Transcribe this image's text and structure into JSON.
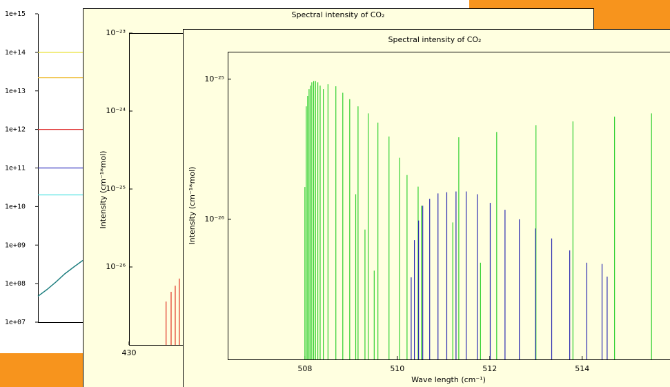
{
  "background_chart": {
    "type": "levels",
    "ylim": [
      10000000.0,
      1000000000000000.0
    ],
    "log_y": true,
    "yticks": [
      {
        "value": 1000000000000000.0,
        "label": "1e+15"
      },
      {
        "value": 100000000000000.0,
        "label": "1e+14"
      },
      {
        "value": 10000000000000.0,
        "label": "1e+13"
      },
      {
        "value": 1000000000000.0,
        "label": "1e+12"
      },
      {
        "value": 100000000000.0,
        "label": "1e+11"
      },
      {
        "value": 10000000000.0,
        "label": "1e+10"
      },
      {
        "value": 1000000000.0,
        "label": "1e+09"
      },
      {
        "value": 100000000.0,
        "label": "1e+08"
      },
      {
        "value": 10000000.0,
        "label": "1e+07"
      }
    ],
    "levels": [
      {
        "color": "#e8e030",
        "value": 100000000000000.0
      },
      {
        "color": "#f0c040",
        "value": 22000000000000.0
      },
      {
        "color": "#e03030",
        "value": 1000000000000.0
      },
      {
        "color": "#3838c0",
        "value": 100000000000.0
      },
      {
        "color": "#40e0e0",
        "value": 20000000000.0
      }
    ],
    "series": [
      {
        "color": "#1f7f80",
        "values": [
          47000000.0,
          70000000.0,
          110000000.0,
          180000000.0,
          270000000.0,
          400000000.0
        ]
      }
    ]
  },
  "windows": [
    {
      "title": "Spectral intensity of CO₂",
      "chart": {
        "type": "spectrum",
        "ylabel": "Intensity (cm⁻¹*mol)",
        "xlim": [
          430,
          530
        ],
        "xticks": [
          430
        ],
        "ylim": [
          1e-27,
          1e-23
        ],
        "log_y": true,
        "yticks": [
          {
            "value": 1e-23,
            "label": "10⁻²³"
          },
          {
            "value": 1e-24,
            "label": "10⁻²⁴"
          },
          {
            "value": 1e-25,
            "label": "10⁻²⁵"
          },
          {
            "value": 1e-26,
            "label": "10⁻²⁶"
          }
        ],
        "series": [
          {
            "color": "#e03020",
            "x": [
              438.1,
              439.2,
              440.1,
              441.0
            ],
            "values": [
              3.6e-27,
              4.8e-27,
              5.75e-27,
              7.1e-27
            ]
          }
        ]
      }
    },
    {
      "title": "Spectral intensity of CO₂",
      "chart": {
        "type": "spectrum",
        "ylabel": "Intensity (cm⁻¹*mol)",
        "xlabel": "Wave length (cm⁻¹)",
        "xlim": [
          506.33,
          515.9
        ],
        "xticks": [
          508,
          510,
          512,
          514
        ],
        "ylim": [
          1e-27,
          1.57e-25
        ],
        "log_y": true,
        "yticks": [
          {
            "value": 1e-25,
            "label": "10⁻²⁵"
          },
          {
            "value": 1e-26,
            "label": "10⁻²⁶"
          }
        ],
        "series": [
          {
            "color": "#30d030",
            "x": [
              508.0,
              508.03,
              508.06,
              508.09,
              508.12,
              508.15,
              508.19,
              508.23,
              508.28,
              508.33,
              508.4,
              508.5,
              508.67,
              508.82,
              508.97,
              509.1,
              509.15,
              509.3,
              509.37,
              509.5,
              509.58,
              509.82,
              510.05,
              510.21,
              510.45,
              510.52,
              511.2,
              511.33,
              511.8,
              512.15,
              513.0,
              513.8,
              514.7,
              515.5
            ],
            "values": [
              1.7e-26,
              6.4e-26,
              7.6e-26,
              8.5e-26,
              9e-26,
              9.5e-26,
              9.7e-26,
              9.7e-26,
              9.5e-26,
              9e-26,
              8.5e-26,
              9.2e-26,
              8.9e-26,
              8e-26,
              7.2e-26,
              1.51e-26,
              6.4e-26,
              8.45e-27,
              5.7e-26,
              4.3e-27,
              4.9e-26,
              3.9e-26,
              2.75e-26,
              2.07e-26,
              1.71e-26,
              1.25e-26,
              9.5e-27,
              3.85e-26,
              4.9e-27,
              4.2e-26,
              4.7e-26,
              5e-26,
              5.4e-26,
              5.7e-26
            ]
          },
          {
            "color": "#2828b0",
            "x": [
              510.3,
              510.37,
              510.46,
              510.55,
              510.7,
              510.88,
              511.07,
              511.27,
              511.49,
              511.73,
              512.01,
              512.33,
              512.64,
              512.99,
              513.34,
              513.73,
              514.1,
              514.43,
              514.54
            ],
            "values": [
              3.85e-27,
              7.1e-27,
              9.8e-27,
              1.25e-26,
              1.4e-26,
              1.53e-26,
              1.56e-26,
              1.58e-26,
              1.58e-26,
              1.51e-26,
              1.31e-26,
              1.17e-26,
              1e-26,
              8.6e-27,
              7.3e-27,
              6e-27,
              4.9e-27,
              4.8e-27,
              3.9e-27
            ]
          }
        ]
      }
    }
  ]
}
